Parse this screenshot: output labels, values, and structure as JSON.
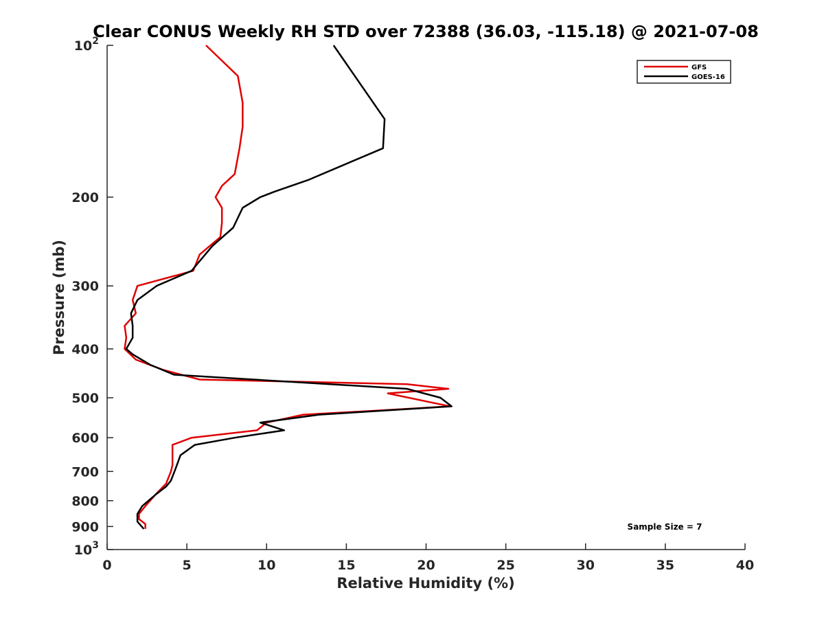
{
  "chart_data": {
    "type": "line",
    "title": "Clear CONUS Weekly RH STD over 72388 (36.03, -115.18) @ 2021-07-08",
    "xlabel": "Relative Humidity (%)",
    "ylabel": "Pressure (mb)",
    "xlim": [
      0,
      40
    ],
    "ylim": [
      100,
      1000
    ],
    "y_scale": "log",
    "y_reversed": true,
    "grid": false,
    "legend_position": "top-right",
    "x_ticks": [
      0,
      5,
      10,
      15,
      20,
      25,
      30,
      35,
      40
    ],
    "x_tick_labels": [
      "0",
      "5",
      "10",
      "15",
      "20",
      "25",
      "30",
      "35",
      "40"
    ],
    "y_ticks": [
      100,
      200,
      300,
      400,
      500,
      600,
      700,
      800,
      900,
      1000
    ],
    "y_tick_labels": [
      {
        "base": "10",
        "exp": "2"
      },
      {
        "base": "200",
        "exp": ""
      },
      {
        "base": "300",
        "exp": ""
      },
      {
        "base": "400",
        "exp": ""
      },
      {
        "base": "500",
        "exp": ""
      },
      {
        "base": "600",
        "exp": ""
      },
      {
        "base": "700",
        "exp": ""
      },
      {
        "base": "800",
        "exp": ""
      },
      {
        "base": "900",
        "exp": ""
      },
      {
        "base": "10",
        "exp": "3"
      }
    ],
    "annotation": "Sample Size = 7",
    "series": [
      {
        "name": "GFS",
        "color": "#e00000",
        "points": [
          [
            6.2,
            100
          ],
          [
            8.2,
            115
          ],
          [
            8.5,
            130
          ],
          [
            8.5,
            145
          ],
          [
            8.3,
            160
          ],
          [
            8.0,
            180
          ],
          [
            7.2,
            190
          ],
          [
            6.8,
            200
          ],
          [
            7.2,
            210
          ],
          [
            7.2,
            225
          ],
          [
            7.1,
            240
          ],
          [
            5.8,
            260
          ],
          [
            5.4,
            280
          ],
          [
            1.9,
            300
          ],
          [
            1.6,
            320
          ],
          [
            1.8,
            340
          ],
          [
            1.1,
            360
          ],
          [
            1.2,
            380
          ],
          [
            1.1,
            400
          ],
          [
            1.8,
            420
          ],
          [
            3.5,
            440
          ],
          [
            5.8,
            460
          ],
          [
            18.8,
            470
          ],
          [
            21.4,
            480
          ],
          [
            17.6,
            490
          ],
          [
            21.5,
            520
          ],
          [
            17.0,
            530
          ],
          [
            12.3,
            540
          ],
          [
            10.0,
            560
          ],
          [
            9.4,
            580
          ],
          [
            5.3,
            600
          ],
          [
            4.1,
            620
          ],
          [
            4.1,
            680
          ],
          [
            4.0,
            700
          ],
          [
            3.7,
            740
          ],
          [
            3.0,
            780
          ],
          [
            2.4,
            820
          ],
          [
            2.0,
            850
          ],
          [
            2.0,
            870
          ],
          [
            2.4,
            890
          ],
          [
            2.4,
            910
          ]
        ]
      },
      {
        "name": "GOES-16",
        "color": "#000000",
        "points": [
          [
            14.2,
            100
          ],
          [
            17.4,
            140
          ],
          [
            17.3,
            160
          ],
          [
            12.6,
            185
          ],
          [
            10.5,
            195
          ],
          [
            9.6,
            200
          ],
          [
            8.5,
            210
          ],
          [
            7.9,
            230
          ],
          [
            6.6,
            250
          ],
          [
            5.5,
            275
          ],
          [
            5.3,
            280
          ],
          [
            3.1,
            300
          ],
          [
            1.9,
            320
          ],
          [
            1.5,
            340
          ],
          [
            1.6,
            360
          ],
          [
            1.6,
            380
          ],
          [
            1.2,
            400
          ],
          [
            1.6,
            410
          ],
          [
            2.7,
            430
          ],
          [
            4.2,
            450
          ],
          [
            18.8,
            480
          ],
          [
            20.9,
            500
          ],
          [
            21.6,
            520
          ],
          [
            13.3,
            540
          ],
          [
            9.6,
            560
          ],
          [
            11.1,
            580
          ],
          [
            8.0,
            600
          ],
          [
            5.5,
            620
          ],
          [
            4.6,
            650
          ],
          [
            4.3,
            690
          ],
          [
            4.0,
            730
          ],
          [
            3.7,
            750
          ],
          [
            3.0,
            780
          ],
          [
            2.2,
            820
          ],
          [
            1.9,
            850
          ],
          [
            1.9,
            880
          ],
          [
            2.3,
            910
          ]
        ]
      }
    ]
  }
}
